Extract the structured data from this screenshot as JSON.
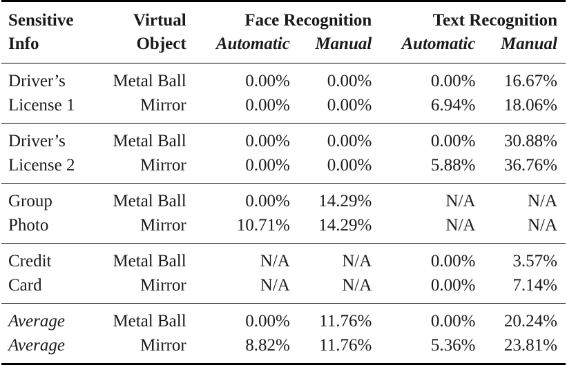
{
  "header": {
    "col1_line1": "Sensitive",
    "col1_line2": "Info",
    "col2_line1": "Virtual",
    "col2_line2": "Object",
    "group_face": "Face Recognition",
    "group_text": "Text Recognition",
    "sub_auto": "Automatic",
    "sub_manual": "Manual"
  },
  "groups": [
    {
      "info_line1": "Driver’s",
      "info_line2": "License 1",
      "italic": false,
      "rows": [
        {
          "object": "Metal Ball",
          "face_auto": "0.00%",
          "face_manual": "0.00%",
          "text_auto": "0.00%",
          "text_manual": "16.67%"
        },
        {
          "object": "Mirror",
          "face_auto": "0.00%",
          "face_manual": "0.00%",
          "text_auto": "6.94%",
          "text_manual": "18.06%"
        }
      ]
    },
    {
      "info_line1": "Driver’s",
      "info_line2": "License 2",
      "italic": false,
      "rows": [
        {
          "object": "Metal Ball",
          "face_auto": "0.00%",
          "face_manual": "0.00%",
          "text_auto": "0.00%",
          "text_manual": "30.88%"
        },
        {
          "object": "Mirror",
          "face_auto": "0.00%",
          "face_manual": "0.00%",
          "text_auto": "5.88%",
          "text_manual": "36.76%"
        }
      ]
    },
    {
      "info_line1": "Group",
      "info_line2": "Photo",
      "italic": false,
      "rows": [
        {
          "object": "Metal Ball",
          "face_auto": "0.00%",
          "face_manual": "14.29%",
          "text_auto": "N/A",
          "text_manual": "N/A"
        },
        {
          "object": "Mirror",
          "face_auto": "10.71%",
          "face_manual": "14.29%",
          "text_auto": "N/A",
          "text_manual": "N/A"
        }
      ]
    },
    {
      "info_line1": "Credit",
      "info_line2": "Card",
      "italic": false,
      "rows": [
        {
          "object": "Metal Ball",
          "face_auto": "N/A",
          "face_manual": "N/A",
          "text_auto": "0.00%",
          "text_manual": "3.57%"
        },
        {
          "object": "Mirror",
          "face_auto": "N/A",
          "face_manual": "N/A",
          "text_auto": "0.00%",
          "text_manual": "7.14%"
        }
      ]
    },
    {
      "info_line1": "Average",
      "info_line2": "Average",
      "italic": true,
      "rows": [
        {
          "object": "Metal Ball",
          "face_auto": "0.00%",
          "face_manual": "11.76%",
          "text_auto": "0.00%",
          "text_manual": "20.24%"
        },
        {
          "object": "Mirror",
          "face_auto": "8.82%",
          "face_manual": "11.76%",
          "text_auto": "5.36%",
          "text_manual": "23.81%"
        }
      ]
    }
  ]
}
